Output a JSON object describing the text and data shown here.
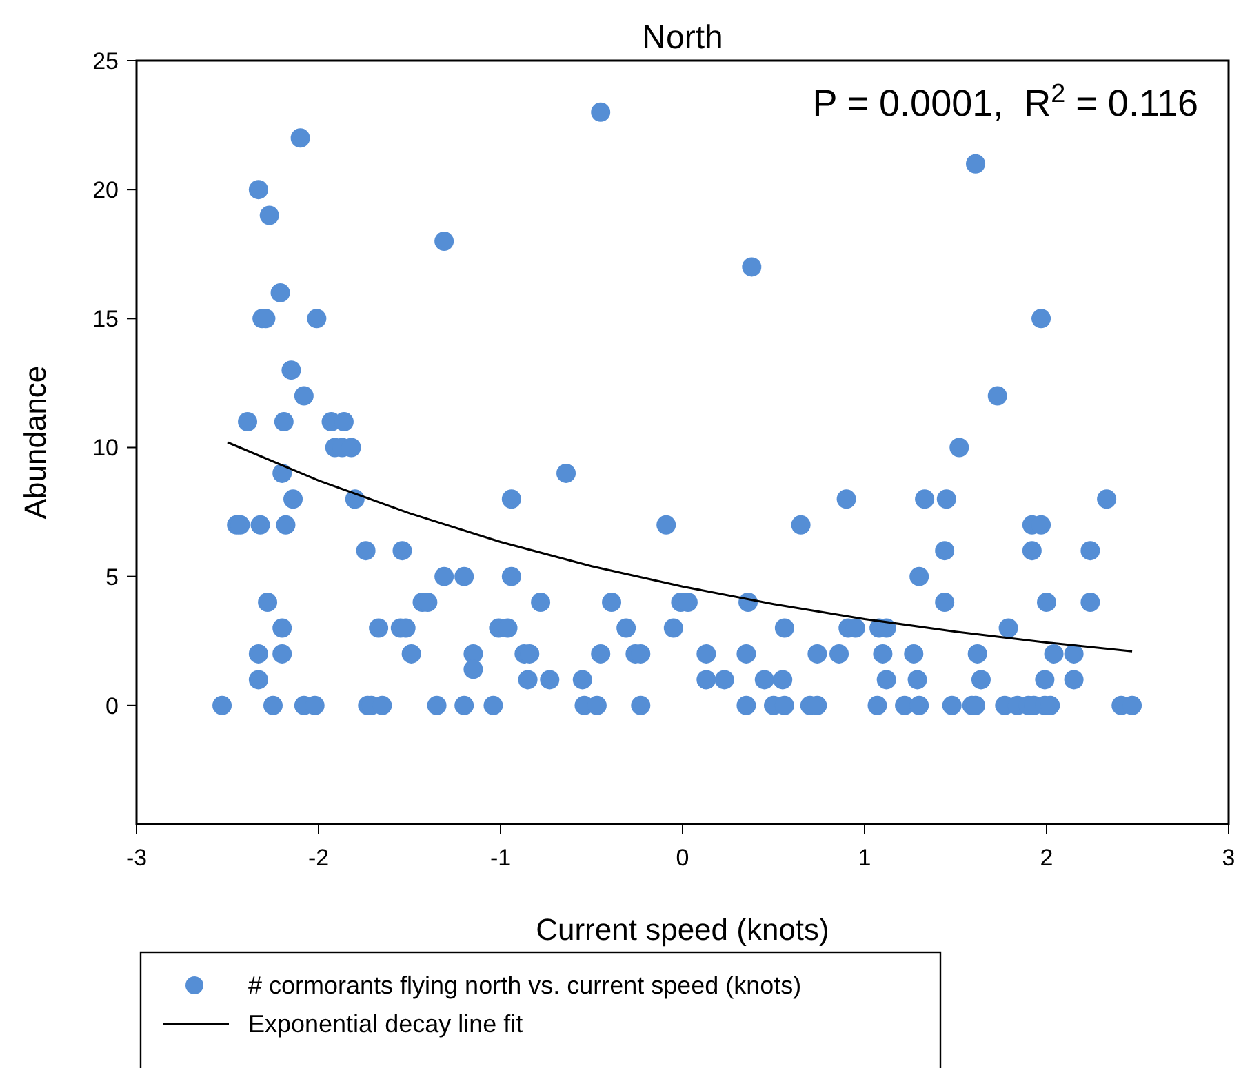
{
  "chart_data": {
    "type": "scatter",
    "title": "North",
    "xlabel": "Current speed (knots)",
    "ylabel": "Abundance",
    "xlim": [
      -3,
      3
    ],
    "ylim": [
      -4.6,
      25
    ],
    "xticks": [
      -3,
      -2,
      -1,
      0,
      1,
      2,
      3
    ],
    "yticks": [
      0,
      5,
      10,
      15,
      20,
      25
    ],
    "grid": false,
    "legend": "bottom",
    "marker": "circle",
    "annotations": [
      "P = 0.0001,  R$^{2}$ = 0.116"
    ],
    "series": [
      {
        "name": "# cormorants flying north vs. current speed (knots)",
        "color": "#558ed5",
        "x": [
          -2.53,
          -2.45,
          -2.43,
          -2.39,
          -2.33,
          -2.31,
          -2.29,
          -2.32,
          -2.33,
          -2.33,
          -2.27,
          -2.28,
          -2.25,
          -2.21,
          -2.2,
          -2.19,
          -2.2,
          -2.2,
          -2.18,
          -2.15,
          -2.14,
          -2.1,
          -2.08,
          -2.08,
          -2.02,
          -2.01,
          -1.93,
          -1.91,
          -1.86,
          -1.87,
          -1.82,
          -1.8,
          -1.74,
          -1.73,
          -1.71,
          -1.65,
          -1.67,
          -1.54,
          -1.55,
          -1.52,
          -1.49,
          -1.43,
          -1.4,
          -1.35,
          -1.31,
          -1.31,
          -1.2,
          -1.2,
          -1.15,
          -1.15,
          -1.04,
          -1.01,
          -0.96,
          -0.94,
          -0.94,
          -0.87,
          -0.84,
          -0.85,
          -0.78,
          -0.73,
          -0.64,
          -0.55,
          -0.54,
          -0.47,
          -0.45,
          -0.45,
          -0.39,
          -0.31,
          -0.26,
          -0.23,
          -0.23,
          -0.09,
          -0.05,
          -0.01,
          0.03,
          0.13,
          0.13,
          0.23,
          0.36,
          0.35,
          0.35,
          0.38,
          0.45,
          0.5,
          0.55,
          0.56,
          0.56,
          0.65,
          0.7,
          0.74,
          0.74,
          0.86,
          0.9,
          0.91,
          0.95,
          1.07,
          1.08,
          1.1,
          1.12,
          1.12,
          1.22,
          1.27,
          1.29,
          1.3,
          1.3,
          1.33,
          1.44,
          1.44,
          1.45,
          1.48,
          1.52,
          1.59,
          1.61,
          1.61,
          1.62,
          1.64,
          1.73,
          1.77,
          1.79,
          1.84,
          1.9,
          1.92,
          1.92,
          1.93,
          1.97,
          1.97,
          2.0,
          1.99,
          1.99,
          2.02,
          2.04,
          2.15,
          2.15,
          2.24,
          2.24,
          2.33,
          2.41,
          2.47
        ],
        "values": [
          0,
          7,
          7,
          11,
          20,
          15,
          15,
          7,
          2,
          1,
          19,
          4,
          0,
          16,
          9,
          11,
          3,
          2,
          7,
          13,
          8,
          22,
          12,
          0,
          0,
          15,
          11,
          10,
          11,
          10,
          10,
          8,
          6,
          0,
          0,
          0,
          3,
          6,
          3,
          3,
          2,
          4,
          4,
          0,
          18,
          5,
          5,
          0,
          2,
          1.4,
          0,
          3,
          3,
          8,
          5,
          2,
          2,
          1,
          4,
          1,
          9,
          1,
          0,
          0,
          2,
          23,
          4,
          3,
          2,
          2,
          0,
          7,
          3,
          4,
          4,
          2,
          1,
          1,
          4,
          2,
          0,
          17,
          1,
          0,
          1,
          3,
          0,
          7,
          0,
          0,
          2,
          2,
          8,
          3,
          3,
          0,
          3,
          2,
          1,
          3,
          0,
          2,
          1,
          0,
          5,
          8,
          4,
          6,
          8,
          0,
          10,
          0,
          0,
          21,
          2,
          1,
          12,
          0,
          3,
          0,
          0,
          6,
          7,
          0,
          7,
          15,
          4,
          1,
          0,
          0,
          2,
          2,
          1,
          6,
          4,
          8,
          0,
          0
        ]
      },
      {
        "name": "Exponential decay line fit",
        "color": "#000000",
        "type": "line",
        "marker": "none",
        "x": [
          -2.5,
          -2,
          -1.5,
          -1,
          -0.5,
          0,
          0.5,
          1,
          1.5,
          2,
          2.47
        ],
        "values": [
          10.2,
          8.72,
          7.45,
          6.34,
          5.4,
          4.61,
          3.93,
          3.35,
          2.86,
          2.44,
          2.1
        ]
      }
    ]
  }
}
